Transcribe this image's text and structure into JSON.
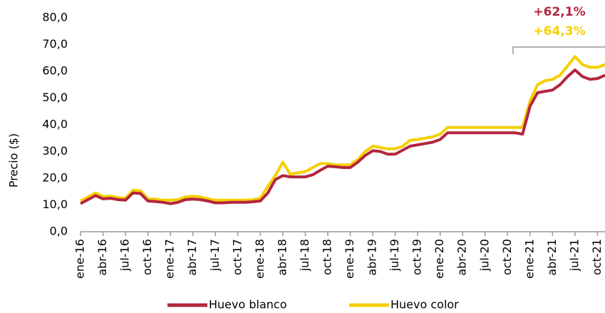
{
  "chart_data": {
    "type": "line",
    "y_label": "Precio ($)",
    "annotations": [
      {
        "text": "+62,1%",
        "color": "#b3263f"
      },
      {
        "text": "+64,3%",
        "color": "#f5d000"
      }
    ],
    "categories": [
      "ene-16",
      null,
      null,
      "abr-16",
      null,
      null,
      "jul-16",
      null,
      null,
      "oct-16",
      null,
      null,
      "ene-17",
      null,
      null,
      "abr-17",
      null,
      null,
      "jul-17",
      null,
      null,
      "oct-17",
      null,
      null,
      "ene-18",
      null,
      null,
      "abr-18",
      null,
      null,
      "jul-18",
      null,
      null,
      "oct-18",
      null,
      null,
      "ene-19",
      null,
      null,
      "abr-19",
      null,
      null,
      "jul-19",
      null,
      null,
      "oct-19",
      null,
      null,
      "ene-20",
      null,
      null,
      "abr-20",
      null,
      null,
      "jul-20",
      null,
      null,
      "oct-20",
      null,
      null,
      "ene-21",
      null,
      null,
      "abr-21",
      null,
      null,
      "jul-21",
      null,
      null,
      "oct-21",
      null
    ],
    "series": [
      {
        "name": "Huevo blanco",
        "color": "#b3263f",
        "values": [
          10.5,
          12,
          13.5,
          12.3,
          12.5,
          12,
          11.8,
          14.5,
          14.3,
          11.5,
          11.3,
          11,
          10.5,
          11,
          12,
          12.2,
          12,
          11.5,
          10.8,
          10.8,
          11,
          11,
          11,
          11.2,
          11.5,
          14.5,
          19.5,
          21,
          20.5,
          20.5,
          20.5,
          21.3,
          23,
          24.5,
          24.3,
          24,
          24,
          26,
          28.5,
          30.3,
          30,
          29,
          29,
          30.5,
          32,
          32.5,
          33,
          33.5,
          34.5,
          37,
          37,
          37,
          37,
          37,
          37,
          37,
          37,
          37,
          37,
          36.5,
          47,
          52,
          52.5,
          53,
          55,
          58,
          60.5,
          58,
          57,
          57.3,
          58.5
        ]
      },
      {
        "name": "Huevo color",
        "color": "#f5d000",
        "values": [
          11.5,
          13,
          14.5,
          13.2,
          13.3,
          12.8,
          12.5,
          15.5,
          15.3,
          12.3,
          12.2,
          11.8,
          11.8,
          12,
          13,
          13.3,
          13,
          12.3,
          11.8,
          11.8,
          11.8,
          11.8,
          11.8,
          12,
          12.5,
          17,
          21,
          26,
          21.5,
          22,
          22.5,
          24,
          25.5,
          25.5,
          25,
          25,
          25,
          27,
          30,
          32,
          31.5,
          31,
          31,
          32,
          34.2,
          34.5,
          35,
          35.5,
          36.5,
          39,
          39,
          39,
          39,
          39,
          39,
          39,
          39,
          39,
          39,
          39,
          49,
          55,
          56.5,
          57,
          58.5,
          62,
          65.5,
          62.5,
          61.5,
          61.5,
          62.5
        ]
      }
    ],
    "ylim": [
      0,
      80
    ],
    "yticks": [
      {
        "value": 0,
        "label": "0,0"
      },
      {
        "value": 10,
        "label": "10,0"
      },
      {
        "value": 20,
        "label": "20,0"
      },
      {
        "value": 30,
        "label": "30,0"
      },
      {
        "value": 40,
        "label": "40,0"
      },
      {
        "value": 50,
        "label": "50,0"
      },
      {
        "value": 60,
        "label": "60,0"
      },
      {
        "value": 70,
        "label": "70,0"
      },
      {
        "value": 80,
        "label": "80,0"
      }
    ],
    "legend": "bottom"
  }
}
